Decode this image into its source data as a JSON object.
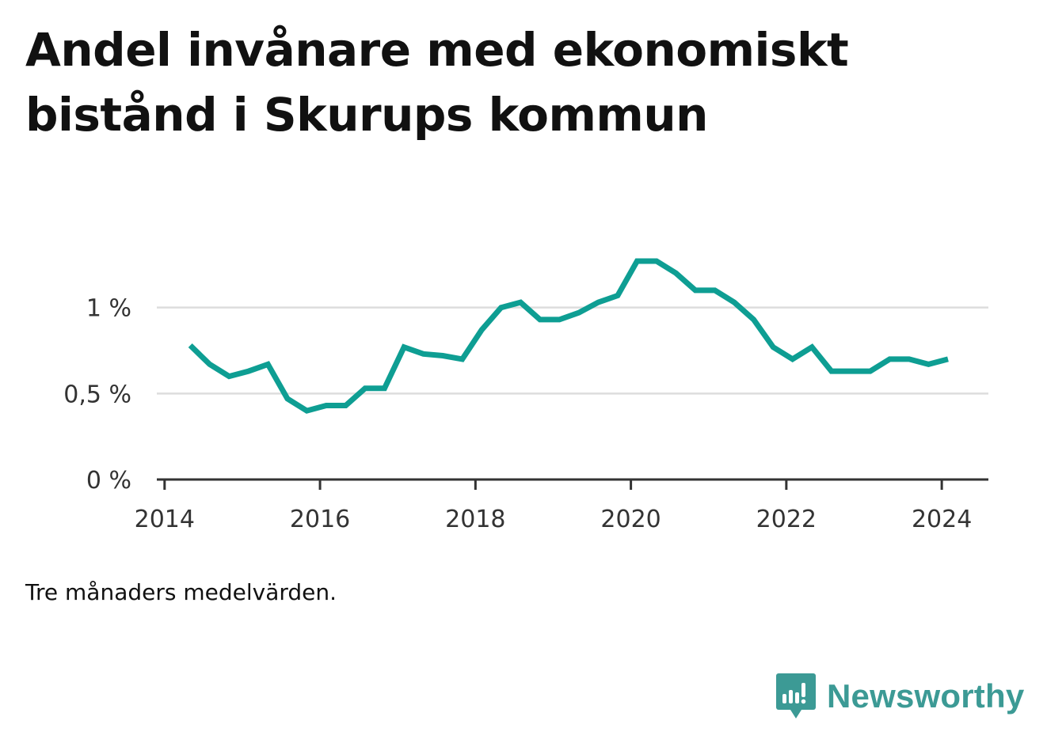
{
  "title": "Andel invånare med ekonomiskt bistånd i Skurups kommun",
  "note": "Tre månaders medelvärden.",
  "brand": {
    "name": "Newsworthy",
    "color": "#3c9a95",
    "icon": "newsworthy-logo-icon"
  },
  "chart_data": {
    "type": "line",
    "title": "Andel invånare med ekonomiskt bistånd i Skurups kommun",
    "xlabel": "",
    "ylabel": "",
    "xlim": [
      2013.9,
      2024.6
    ],
    "ylim": [
      0,
      1.5
    ],
    "x_ticks": [
      2014,
      2016,
      2018,
      2020,
      2022,
      2024
    ],
    "x_tick_labels": [
      "2014",
      "2016",
      "2018",
      "2020",
      "2022",
      "2024"
    ],
    "y_ticks": [
      0,
      0.5,
      1
    ],
    "y_tick_labels": [
      "0 %",
      "0,5 %",
      "1 %"
    ],
    "grid": "horizontal",
    "line_color": "#0e9e93",
    "series": [
      {
        "x": [
          2014.33,
          2014.58,
          2014.83,
          2015.08,
          2015.33,
          2015.58,
          2015.83,
          2016.08,
          2016.33,
          2016.58,
          2016.83,
          2017.08,
          2017.33,
          2017.58,
          2017.83,
          2018.08,
          2018.33,
          2018.58,
          2018.83,
          2019.08,
          2019.33,
          2019.58,
          2019.83,
          2020.08,
          2020.33,
          2020.58,
          2020.83,
          2021.08,
          2021.33,
          2021.58,
          2021.83,
          2022.08,
          2022.33,
          2022.58,
          2022.83,
          2023.08,
          2023.33,
          2023.58,
          2023.83,
          2024.08
        ],
        "values": [
          0.78,
          0.67,
          0.6,
          0.63,
          0.67,
          0.47,
          0.4,
          0.43,
          0.43,
          0.53,
          0.53,
          0.77,
          0.73,
          0.72,
          0.7,
          0.87,
          1.0,
          1.03,
          0.93,
          0.93,
          0.97,
          1.03,
          1.07,
          1.27,
          1.27,
          1.2,
          1.1,
          1.1,
          1.03,
          0.93,
          0.77,
          0.7,
          0.77,
          0.63,
          0.63,
          0.63,
          0.7,
          0.7,
          0.67,
          0.7
        ]
      }
    ]
  }
}
